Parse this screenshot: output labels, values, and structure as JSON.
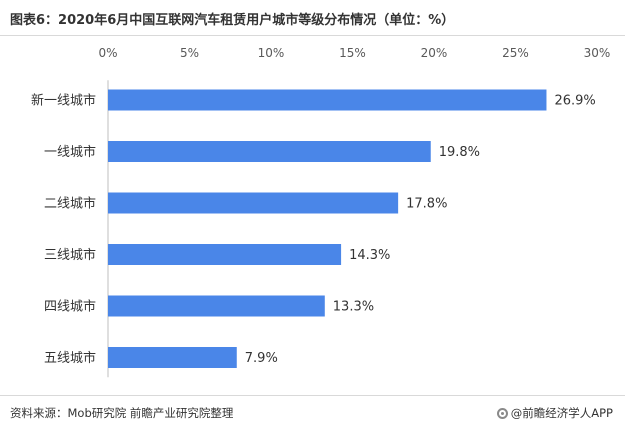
{
  "title": "图表6：2020年6月中国互联网汽车租赁用户城市等级分布情况（单位：%）",
  "footer": {
    "source": "资料来源：Mob研究院 前瞻产业研究院整理",
    "brand": "@前瞻经济学人APP"
  },
  "colors": {
    "bar": "#4a86e8",
    "text": "#333333",
    "axis": "#595959"
  },
  "chart_data": {
    "type": "bar",
    "orientation": "horizontal",
    "categories": [
      "新一线城市",
      "一线城市",
      "二线城市",
      "三线城市",
      "四线城市",
      "五线城市"
    ],
    "values": [
      26.9,
      19.8,
      17.8,
      14.3,
      13.3,
      7.9
    ],
    "value_labels": [
      "26.9%",
      "19.8%",
      "17.8%",
      "14.3%",
      "13.3%",
      "7.9%"
    ],
    "x_ticks": [
      0,
      5,
      10,
      15,
      20,
      25,
      30
    ],
    "x_tick_labels": [
      "0%",
      "5%",
      "10%",
      "15%",
      "20%",
      "25%",
      "30%"
    ],
    "xlim": [
      0,
      30
    ],
    "axis_position": "top",
    "grid": false,
    "legend": "none"
  }
}
